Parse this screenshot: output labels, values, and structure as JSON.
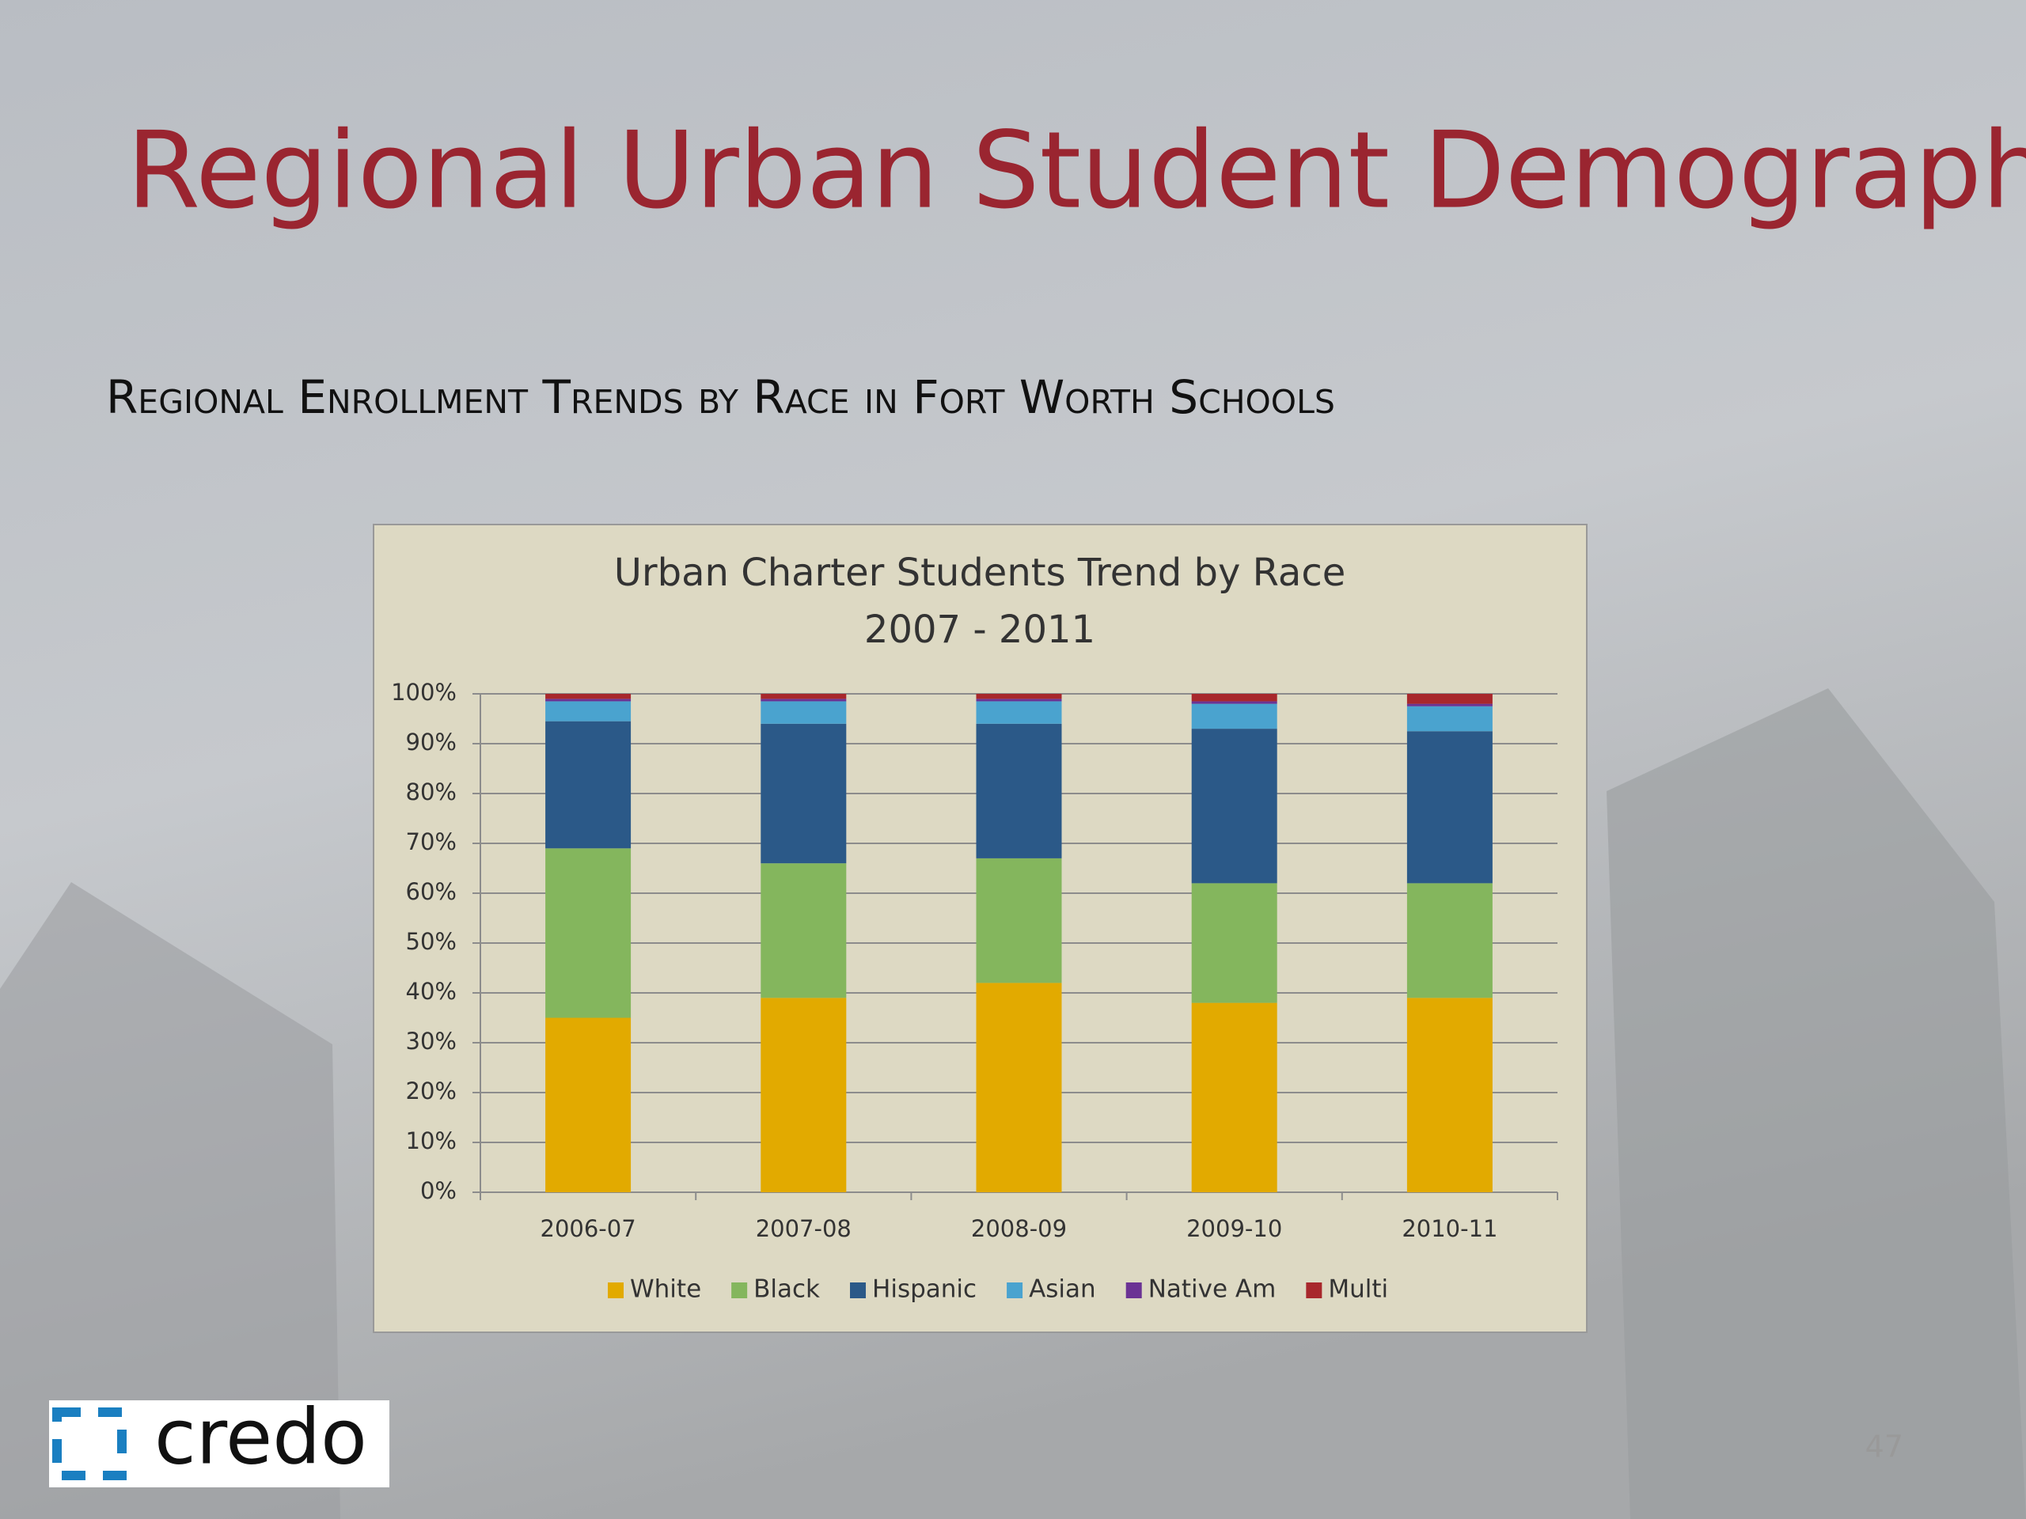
{
  "slide": {
    "title": "Regional Urban Student Demographics",
    "subtitle": "Regional Enrollment Trends by Race in Fort Worth Schools",
    "logo": "credo",
    "page_number": "47"
  },
  "chart_data": {
    "type": "stacked_bar",
    "title": [
      "Urban Charter Students Trend by Race",
      "2007 - 2011"
    ],
    "categories": [
      "2006-07",
      "2007-08",
      "2008-09",
      "2009-10",
      "2010-11"
    ],
    "series": [
      {
        "name": "White",
        "color": "#e2aa00",
        "values": [
          35,
          39,
          42,
          38,
          39
        ]
      },
      {
        "name": "Black",
        "color": "#84b65d",
        "values": [
          34,
          27,
          25,
          24,
          23
        ]
      },
      {
        "name": "Hispanic",
        "color": "#2b5988",
        "values": [
          25.5,
          28,
          27,
          31,
          30.5
        ]
      },
      {
        "name": "Asian",
        "color": "#4aa3cf",
        "values": [
          4,
          4.5,
          4.5,
          5,
          5
        ]
      },
      {
        "name": "Native Am",
        "color": "#6b3394",
        "values": [
          0.5,
          0.5,
          0.5,
          0.5,
          0.5
        ]
      },
      {
        "name": "Multi",
        "color": "#a8282c",
        "values": [
          1,
          1,
          1,
          1.5,
          2
        ]
      }
    ],
    "ylim": [
      0,
      100
    ],
    "yticks": [
      {
        "value": 0,
        "label": "0%"
      },
      {
        "value": 10,
        "label": "10%"
      },
      {
        "value": 20,
        "label": "20%"
      },
      {
        "value": 30,
        "label": "30%"
      },
      {
        "value": 40,
        "label": "40%"
      },
      {
        "value": 50,
        "label": "50%"
      },
      {
        "value": 60,
        "label": "60%"
      },
      {
        "value": 70,
        "label": "70%"
      },
      {
        "value": 80,
        "label": "80%"
      },
      {
        "value": 90,
        "label": "90%"
      },
      {
        "value": 100,
        "label": "100%"
      }
    ],
    "grid": true,
    "legend": "bottom"
  }
}
